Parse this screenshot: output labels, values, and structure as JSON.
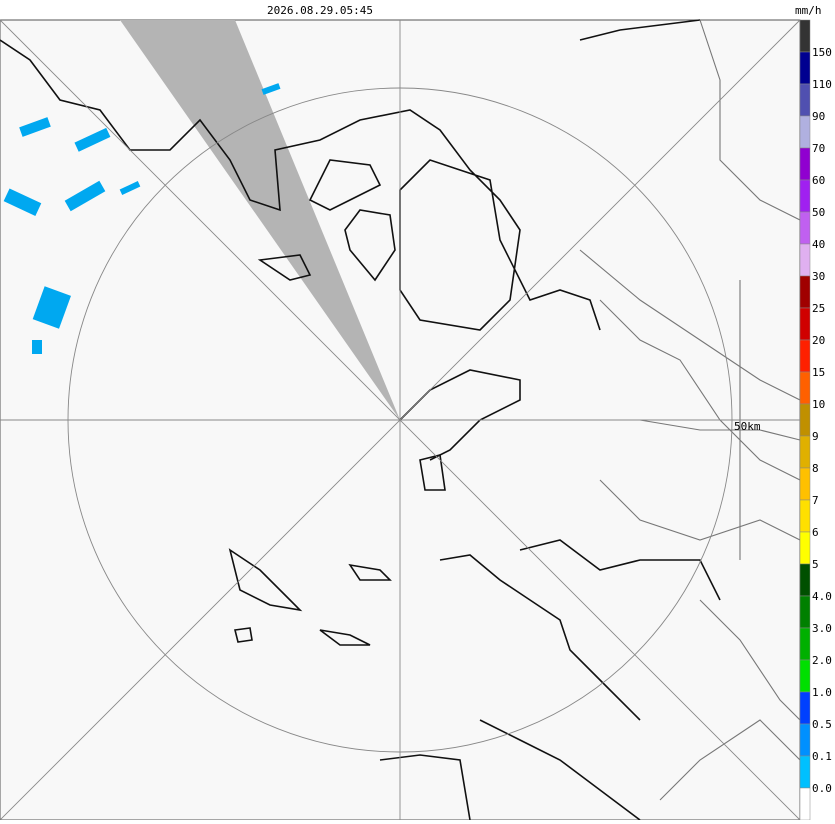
{
  "header": {
    "timestamp": "2026.08.29.05:45"
  },
  "map": {
    "range_label": "50km"
  },
  "legend": {
    "unit": "mm/h",
    "labels": [
      "150",
      "110",
      "90",
      "70",
      "60",
      "50",
      "40",
      "30",
      "25",
      "20",
      "15",
      "10",
      "9",
      "8",
      "7",
      "6",
      "5",
      "4.0",
      "3.0",
      "2.0",
      "1.0",
      "0.5",
      "0.1",
      "0.0"
    ],
    "colors": [
      "#333333",
      "#000090",
      "#5050b0",
      "#b0b0e0",
      "#9000d0",
      "#a020f0",
      "#c060f0",
      "#e0b0f0",
      "#a00000",
      "#d00000",
      "#ff2000",
      "#ff6000",
      "#c09000",
      "#e0b000",
      "#ffc000",
      "#ffe000",
      "#ffff00",
      "#005000",
      "#008000",
      "#00b000",
      "#00e000",
      "#0040ff",
      "#0090ff",
      "#00c0ff",
      "#ffffff"
    ]
  }
}
